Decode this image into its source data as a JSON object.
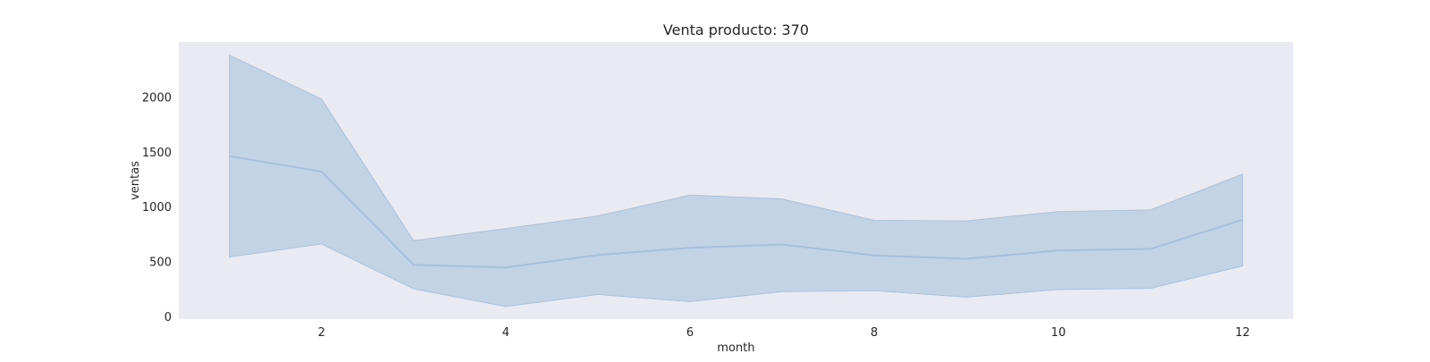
{
  "chart_data": {
    "type": "line",
    "title": "Venta producto: 370",
    "xlabel": "month",
    "ylabel": "ventas",
    "x": [
      1,
      2,
      3,
      4,
      5,
      6,
      7,
      8,
      9,
      10,
      11,
      12
    ],
    "series": [
      {
        "values": [
          1460,
          1320,
          470,
          445,
          560,
          625,
          655,
          555,
          525,
          600,
          615,
          880
        ],
        "lower": [
          540,
          660,
          250,
          90,
          200,
          135,
          225,
          235,
          175,
          245,
          255,
          460
        ],
        "upper": [
          2380,
          1980,
          690,
          800,
          915,
          1105,
          1070,
          875,
          870,
          955,
          970,
          1295
        ]
      }
    ],
    "xticks": [
      2,
      4,
      6,
      8,
      10,
      12
    ],
    "yticks": [
      0,
      500,
      1000,
      1500,
      2000
    ],
    "xlim": [
      0.45,
      12.55
    ],
    "ylim": [
      -25,
      2500
    ],
    "grid": false,
    "colors": {
      "plot_background": "#eaeaf2",
      "line": "#a5c1dc",
      "band": "#c2d3e5",
      "band_edge": "#a9c2dc"
    }
  }
}
